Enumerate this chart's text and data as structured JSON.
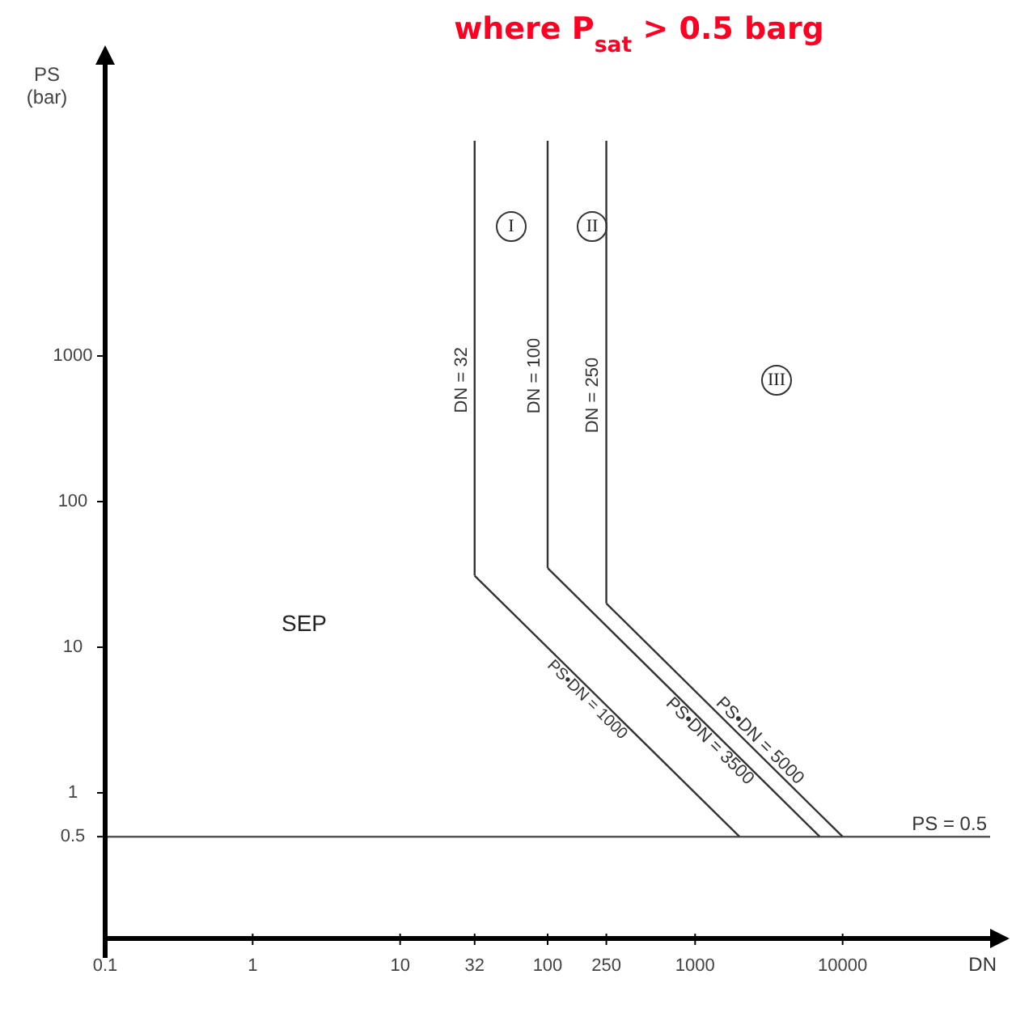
{
  "chart_data": {
    "type": "line",
    "title": "where P$_{sat}$ > 0.5 barg",
    "xlabel": "DN",
    "ylabel": "PS (bar)",
    "log": "xy",
    "xlim": [
      0.1,
      100000
    ],
    "xticks": [
      0.1,
      1,
      10,
      32,
      100,
      250,
      1000,
      10000
    ],
    "ylim": [
      0.1,
      100000
    ],
    "yticks": [
      0.5,
      1,
      10,
      100,
      1000
    ],
    "grid": false,
    "marker": "none",
    "line_style": "solid",
    "series": [
      {
        "name": "DN = 32",
        "color": "#333333",
        "x": [
          32,
          32
        ],
        "values": [
          31,
          30000
        ]
      },
      {
        "name": "DN = 100",
        "color": "#333333",
        "x": [
          100,
          100
        ],
        "values": [
          35,
          30000
        ]
      },
      {
        "name": "DN = 250",
        "color": "#333333",
        "x": [
          250,
          250
        ],
        "values": [
          20,
          30000
        ]
      },
      {
        "name": "PS•DN = 1000",
        "color": "#333333",
        "x": [
          32,
          2000
        ],
        "values": [
          31,
          0.5
        ]
      },
      {
        "name": "PS•DN = 3500",
        "color": "#333333",
        "x": [
          100,
          7000
        ],
        "values": [
          35,
          0.5
        ]
      },
      {
        "name": "PS•DN = 5000",
        "color": "#333333",
        "x": [
          250,
          10000
        ],
        "values": [
          20,
          0.5
        ]
      }
    ],
    "ref_lines": [
      {
        "axis": "y",
        "value": 0.5,
        "label": "PS = 0.5",
        "color": "#555555"
      }
    ],
    "annotations": [
      "I",
      "II",
      "III",
      "SEP"
    ]
  }
}
